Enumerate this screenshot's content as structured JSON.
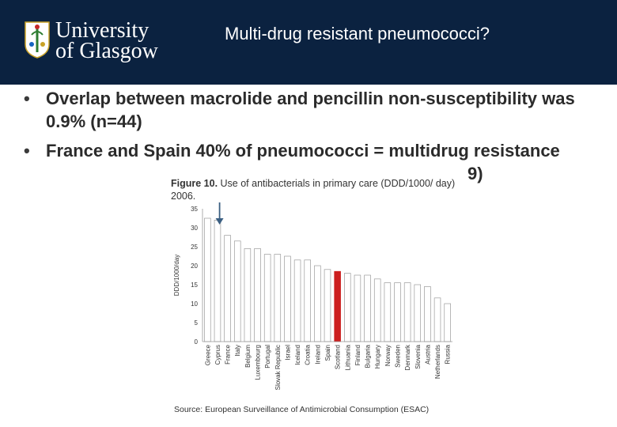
{
  "header": {
    "logo_line1": "University",
    "logo_line2": "of Glasgow",
    "title": "Multi-drug resistant pneumococci?"
  },
  "bullets": [
    "Overlap between macrolide and pencillin non-susceptibility was 0.9% (n=44)",
    "France and Spain 40% of pneumococci = multidrug resistance",
    "9)"
  ],
  "figure": {
    "caption_bold": "Figure 10.",
    "caption_rest": " Use of antibacterials in primary care (DDD/1000/ day) 2006.",
    "source": "Source: European Surveillance of Antimicrobial Consumption (ESAC)"
  },
  "colors": {
    "header_bg": "#0b2240",
    "bar_default": "#ffffff",
    "bar_highlight": "#cc1f1f",
    "arrow": "#3b5f82"
  },
  "chart_data": {
    "type": "bar",
    "ylabel": "DDD/1000/day",
    "ylim": [
      0,
      35
    ],
    "yticks": [
      0,
      5,
      10,
      15,
      20,
      25,
      30,
      35
    ],
    "categories": [
      "Greece",
      "Cyprus",
      "France",
      "Italy",
      "Belgium",
      "Luxembourg",
      "Portugal",
      "Slovak Republic",
      "Israel",
      "Iceland",
      "Croatia",
      "Ireland",
      "Spain",
      "Scotland",
      "Lithuania",
      "Finland",
      "Bulgaria",
      "Hungary",
      "Norway",
      "Sweden",
      "Denmark",
      "Slovenia",
      "Austria",
      "Netherlands",
      "Russia"
    ],
    "values": [
      32.5,
      32,
      28,
      26.5,
      24.5,
      24.5,
      23,
      23,
      22.5,
      21.5,
      21.5,
      20,
      19,
      18.5,
      18,
      17.5,
      17.5,
      16.5,
      15.5,
      15.5,
      15.5,
      15,
      14.5,
      11.5,
      10
    ],
    "highlight": "Scotland",
    "arrow_target": "France"
  }
}
